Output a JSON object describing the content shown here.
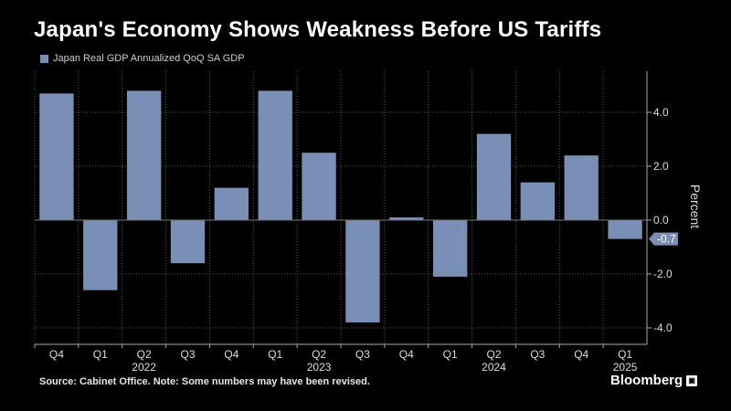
{
  "title": "Japan's Economy Shows Weakness Before US Tariffs",
  "legend_label": "Japan Real GDP Annualized QoQ SA GDP",
  "footer": "Source: Cabinet Office. Note: Some numbers may have been revised.",
  "brand": "Bloomberg",
  "brand_icon": "lit",
  "colors": {
    "bar": "#7a8fb5",
    "background": "#000000",
    "text": "#ffffff",
    "grid": "#555555"
  },
  "chart_data": {
    "type": "bar",
    "categories": [
      "Q4",
      "Q1",
      "Q2",
      "Q3",
      "Q4",
      "Q1",
      "Q2",
      "Q3",
      "Q4",
      "Q1",
      "Q2",
      "Q3",
      "Q4",
      "Q1"
    ],
    "year_labels": [
      {
        "label": "2022",
        "category_index": 2
      },
      {
        "label": "2023",
        "category_index": 6
      },
      {
        "label": "2024",
        "category_index": 10
      },
      {
        "label": "2025",
        "category_index": 13
      }
    ],
    "values": [
      4.7,
      -2.6,
      4.8,
      -1.6,
      1.2,
      4.8,
      2.5,
      -3.8,
      0.1,
      -2.1,
      3.2,
      1.4,
      2.4,
      -0.7
    ],
    "ylabel": "Percent",
    "ylim": [
      -4.5,
      5.5
    ],
    "yticks": [
      -4.0,
      -2.0,
      0.0,
      2.0,
      4.0
    ],
    "latest_value_label": "-0.7",
    "grid": true,
    "legend": "top-left"
  }
}
